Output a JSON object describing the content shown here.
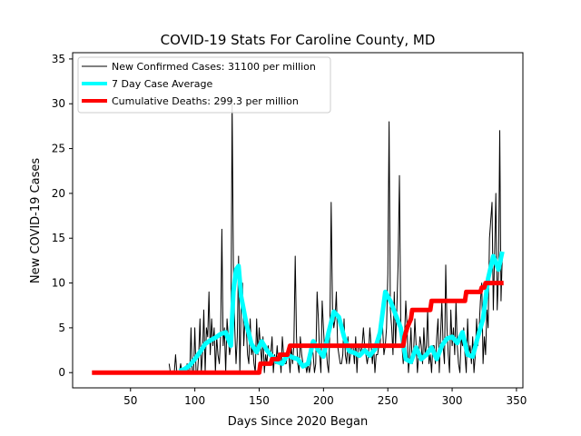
{
  "chart_data": {
    "type": "line",
    "title": "COVID-19 Stats For Caroline County, MD",
    "xlabel": "Days Since 2020 Began",
    "ylabel": "New COVID-19 Cases",
    "xlim": [
      5,
      355
    ],
    "ylim": [
      -1.7,
      35.7
    ],
    "xticks": [
      50,
      100,
      150,
      200,
      250,
      300,
      350
    ],
    "yticks": [
      0,
      5,
      10,
      15,
      20,
      25,
      30,
      35
    ],
    "grid": false,
    "legend_position": "top-left",
    "series": [
      {
        "name": "New Confirmed Cases: 31100 per million",
        "color": "#000000",
        "style": "thin",
        "x": [
          80,
          81,
          82,
          83,
          84,
          85,
          86,
          87,
          88,
          89,
          90,
          91,
          92,
          93,
          94,
          95,
          96,
          97,
          98,
          99,
          100,
          101,
          102,
          103,
          104,
          105,
          106,
          107,
          108,
          109,
          110,
          111,
          112,
          113,
          114,
          115,
          116,
          117,
          118,
          119,
          120,
          121,
          122,
          123,
          124,
          125,
          126,
          127,
          128,
          129,
          130,
          131,
          132,
          133,
          134,
          135,
          136,
          137,
          138,
          139,
          140,
          141,
          142,
          143,
          144,
          145,
          146,
          147,
          148,
          149,
          150,
          151,
          152,
          153,
          154,
          155,
          156,
          157,
          158,
          159,
          160,
          161,
          162,
          163,
          164,
          165,
          166,
          167,
          168,
          169,
          170,
          171,
          172,
          173,
          174,
          175,
          176,
          177,
          178,
          179,
          180,
          181,
          182,
          183,
          184,
          185,
          186,
          187,
          188,
          189,
          190,
          191,
          192,
          193,
          194,
          195,
          196,
          197,
          198,
          199,
          200,
          201,
          202,
          203,
          204,
          205,
          206,
          207,
          208,
          209,
          210,
          211,
          212,
          213,
          214,
          215,
          216,
          217,
          218,
          219,
          220,
          221,
          222,
          223,
          224,
          225,
          226,
          227,
          228,
          229,
          230,
          231,
          232,
          233,
          234,
          235,
          236,
          237,
          238,
          239,
          240,
          241,
          242,
          243,
          244,
          245,
          246,
          247,
          248,
          249,
          250,
          251,
          252,
          253,
          254,
          255,
          256,
          257,
          258,
          259,
          260,
          261,
          262,
          263,
          264,
          265,
          266,
          267,
          268,
          269,
          270,
          271,
          272,
          273,
          274,
          275,
          276,
          277,
          278,
          279,
          280,
          281,
          282,
          283,
          284,
          285,
          286,
          287,
          288,
          289,
          290,
          291,
          292,
          293,
          294,
          295,
          296,
          297,
          298,
          299,
          300,
          301,
          302,
          303,
          304,
          305,
          306,
          307,
          308,
          309,
          310,
          311,
          312,
          313,
          314,
          315,
          316,
          317,
          318,
          319,
          320,
          321,
          322,
          323,
          324,
          325,
          326,
          327,
          328,
          329,
          330,
          331,
          332,
          333,
          334,
          335,
          336,
          337,
          338,
          339
        ],
        "values": [
          1,
          0,
          0,
          0,
          0,
          2,
          0,
          0,
          0,
          1,
          0,
          0,
          0,
          0,
          1,
          0,
          0,
          5,
          0,
          0,
          5,
          0,
          0,
          2,
          6,
          0,
          2,
          7,
          0,
          5,
          4,
          9,
          2,
          6,
          3,
          5,
          0,
          4,
          2,
          1,
          4,
          16,
          3,
          5,
          0,
          6,
          4,
          2,
          3,
          30,
          12,
          5,
          1,
          4,
          13,
          0,
          7,
          10,
          3,
          6,
          5,
          2,
          1,
          6,
          2,
          3,
          1,
          0,
          6,
          2,
          5,
          3,
          1,
          4,
          0,
          2,
          1,
          3,
          2,
          2,
          4,
          0,
          2,
          1,
          3,
          1,
          2,
          0,
          4,
          2,
          1,
          1,
          2,
          2,
          0,
          3,
          1,
          3,
          13,
          4,
          1,
          0,
          4,
          2,
          1,
          1,
          1,
          0,
          1,
          0,
          1,
          3,
          2,
          0,
          1,
          9,
          6,
          2,
          0,
          8,
          5,
          2,
          3,
          1,
          0,
          5,
          19,
          7,
          5,
          6,
          9,
          3,
          2,
          1,
          1,
          2,
          6,
          2,
          1,
          4,
          1,
          2,
          3,
          3,
          1,
          4,
          0,
          3,
          3,
          2,
          3,
          5,
          3,
          2,
          1,
          2,
          5,
          3,
          1,
          3,
          0,
          2,
          2,
          3,
          3,
          6,
          5,
          2,
          3,
          5,
          11,
          28,
          7,
          5,
          2,
          9,
          3,
          7,
          12,
          22,
          6,
          3,
          1,
          4,
          8,
          5,
          0,
          2,
          5,
          1,
          2,
          6,
          3,
          0,
          2,
          4,
          3,
          1,
          5,
          2,
          3,
          7,
          1,
          2,
          0,
          3,
          3,
          1,
          4,
          6,
          0,
          4,
          8,
          3,
          1,
          12,
          5,
          2,
          0,
          7,
          3,
          5,
          2,
          8,
          3,
          1,
          0,
          4,
          3,
          5,
          2,
          0,
          6,
          2,
          3,
          1,
          4,
          0,
          2,
          6,
          3,
          5,
          8,
          10,
          1,
          4,
          2,
          7,
          5,
          15,
          17,
          19,
          7,
          13,
          20,
          7,
          11,
          27,
          8,
          13
        ]
      },
      {
        "name": "7 Day Case Average",
        "color": "#00ffff",
        "style": "thick",
        "x": [
          88,
          92,
          96,
          100,
          104,
          108,
          112,
          116,
          120,
          124,
          128,
          130,
          132,
          134,
          136,
          140,
          144,
          148,
          152,
          156,
          160,
          164,
          168,
          172,
          176,
          180,
          184,
          188,
          192,
          196,
          200,
          204,
          208,
          212,
          216,
          220,
          224,
          228,
          232,
          236,
          240,
          244,
          248,
          252,
          256,
          260,
          264,
          268,
          272,
          276,
          280,
          284,
          288,
          292,
          296,
          300,
          304,
          308,
          312,
          316,
          320,
          324,
          328,
          332,
          336,
          339
        ],
        "values": [
          0.2,
          0.4,
          0.8,
          1.5,
          2.3,
          3.2,
          3.6,
          3.9,
          4.3,
          4.5,
          3.0,
          9.0,
          11.5,
          11.9,
          8.5,
          5.5,
          3.2,
          2.3,
          3.5,
          2.5,
          1.8,
          1.2,
          1.0,
          2.0,
          1.7,
          1.5,
          0.7,
          1.0,
          3.5,
          2.5,
          1.8,
          4.5,
          6.8,
          6.2,
          4.0,
          2.4,
          2.2,
          1.9,
          2.5,
          1.9,
          2.6,
          4.5,
          9.0,
          8.0,
          6.5,
          5.0,
          1.5,
          1.2,
          2.8,
          1.5,
          2.0,
          2.8,
          1.5,
          3.0,
          3.8,
          4.0,
          3.3,
          4.5,
          2.0,
          1.8,
          4.0,
          6.0,
          10.5,
          13.0,
          11.5,
          13.5
        ]
      },
      {
        "name": "Cumulative Deaths: 299.3 per million",
        "color": "#ff0000",
        "style": "thick",
        "x": [
          20,
          150,
          151,
          159,
          160,
          165,
          166,
          172,
          173,
          174,
          262,
          263,
          265,
          268,
          269,
          283,
          284,
          310,
          311,
          322,
          323,
          325,
          326,
          340
        ],
        "values": [
          0,
          0,
          1,
          1,
          1.5,
          1.5,
          2,
          2,
          2.5,
          3,
          3,
          4,
          5,
          6,
          7,
          7,
          8,
          8,
          9,
          9,
          9.5,
          9.5,
          10,
          10
        ]
      }
    ]
  }
}
